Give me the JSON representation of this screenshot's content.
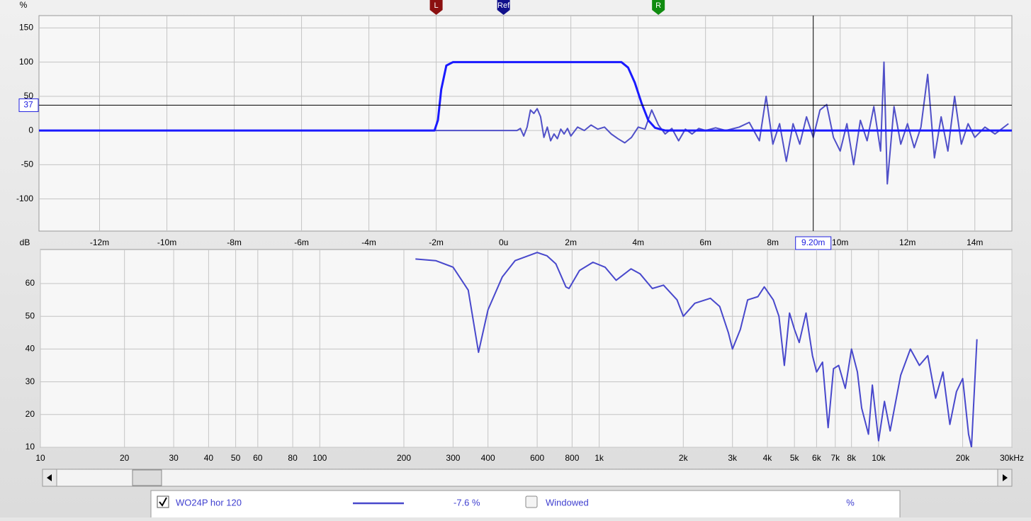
{
  "chart_data": [
    {
      "type": "line",
      "y_label": "%",
      "xlim": [
        -13.8,
        15.1
      ],
      "ylim": [
        -147,
        168
      ],
      "xticks": [
        {
          "value": -12,
          "label": "-12m"
        },
        {
          "value": -10,
          "label": "-10m"
        },
        {
          "value": -8,
          "label": "-8m"
        },
        {
          "value": -6,
          "label": "-6m"
        },
        {
          "value": -4,
          "label": "-4m"
        },
        {
          "value": -2,
          "label": "-2m"
        },
        {
          "value": 0,
          "label": "0u"
        },
        {
          "value": 2,
          "label": "2m"
        },
        {
          "value": 4,
          "label": "4m"
        },
        {
          "value": 6,
          "label": "6m"
        },
        {
          "value": 8,
          "label": "8m"
        },
        {
          "value": 10,
          "label": "10m"
        },
        {
          "value": 12,
          "label": "12m"
        },
        {
          "value": 14,
          "label": "14m"
        }
      ],
      "yticks": [
        150,
        100,
        50,
        0,
        -50,
        -100
      ],
      "grid": true,
      "series": [
        {
          "color": "#5050c8",
          "width": 2,
          "x": [
            -13.8,
            0.4,
            0.5,
            0.6,
            0.7,
            0.8,
            0.9,
            1.0,
            1.1,
            1.2,
            1.3,
            1.4,
            1.5,
            1.6,
            1.7,
            1.8,
            1.9,
            2.0,
            2.2,
            2.4,
            2.6,
            2.8,
            3.0,
            3.2,
            3.4,
            3.6,
            3.8,
            4.0,
            4.2,
            4.4,
            4.6,
            4.8,
            5.0,
            5.2,
            5.4,
            5.6,
            5.8,
            6.0,
            6.3,
            6.6,
            7.0,
            7.3,
            7.6,
            7.8,
            8.0,
            8.2,
            8.4,
            8.6,
            8.8,
            9.0,
            9.2,
            9.4,
            9.6,
            9.8,
            10.0,
            10.2,
            10.4,
            10.6,
            10.8,
            11.0,
            11.2,
            11.3,
            11.4,
            11.6,
            11.8,
            12.0,
            12.2,
            12.4,
            12.6,
            12.8,
            13.0,
            13.2,
            13.4,
            13.6,
            13.8,
            14.0,
            14.3,
            14.6,
            15.0
          ],
          "values": [
            0,
            0,
            3,
            -8,
            5,
            30,
            25,
            32,
            20,
            -10,
            5,
            -15,
            -5,
            -12,
            2,
            -5,
            3,
            -8,
            5,
            0,
            8,
            2,
            5,
            -5,
            -12,
            -18,
            -10,
            5,
            2,
            30,
            8,
            -5,
            3,
            -15,
            2,
            -5,
            3,
            0,
            4,
            0,
            5,
            12,
            -15,
            50,
            -20,
            10,
            -45,
            10,
            -20,
            20,
            -10,
            30,
            38,
            -10,
            -30,
            10,
            -50,
            15,
            -15,
            35,
            -30,
            100,
            -78,
            35,
            -20,
            10,
            -25,
            5,
            82,
            -40,
            20,
            -30,
            50,
            -20,
            10,
            -10,
            5,
            -5,
            10
          ]
        },
        {
          "color": "#1a1aff",
          "width": 3,
          "x": [
            -13.8,
            -2.05,
            -1.95,
            -1.85,
            -1.7,
            -1.5,
            3.5,
            3.7,
            3.9,
            4.1,
            4.3,
            4.5,
            4.8,
            15.1
          ],
          "values": [
            0,
            0,
            15,
            60,
            95,
            100,
            100,
            92,
            70,
            40,
            15,
            4,
            0,
            0
          ]
        }
      ],
      "cursor": {
        "x": {
          "value": 9.2,
          "label": "9.20m"
        },
        "y": 37
      },
      "markers": [
        {
          "label": "L",
          "x": -2,
          "color": "#8b1010"
        },
        {
          "label": "Ref",
          "x": 0,
          "color": "#10108b"
        },
        {
          "label": "R",
          "x": 4.6,
          "color": "#108b10"
        }
      ]
    },
    {
      "type": "line",
      "y_label": "dB",
      "xscale": "log",
      "xlim": [
        10,
        30000
      ],
      "ylim": [
        10,
        70.4
      ],
      "xticks": [
        10,
        20,
        30,
        40,
        50,
        60,
        80,
        100,
        200,
        300,
        400,
        600,
        800,
        {
          "value": 1000,
          "label": "1k"
        },
        {
          "value": 2000,
          "label": "2k"
        },
        {
          "value": 3000,
          "label": "3k"
        },
        {
          "value": 4000,
          "label": "4k"
        },
        {
          "value": 5000,
          "label": "5k"
        },
        {
          "value": 6000,
          "label": "6k"
        },
        {
          "value": 7000,
          "label": "7k"
        },
        {
          "value": 8000,
          "label": "8k"
        },
        {
          "value": 10000,
          "label": "10k"
        },
        {
          "value": 20000,
          "label": "20k"
        },
        {
          "value": 30000,
          "label": "30kHz"
        }
      ],
      "yticks": [
        10,
        20,
        30,
        40,
        50,
        60
      ],
      "grid": true,
      "series": [
        {
          "color": "#4848cc",
          "width": 2,
          "x": [
            220,
            260,
            300,
            340,
            370,
            400,
            450,
            500,
            600,
            650,
            700,
            760,
            780,
            850,
            950,
            1050,
            1150,
            1300,
            1400,
            1550,
            1700,
            1900,
            2000,
            2200,
            2500,
            2700,
            2900,
            3000,
            3200,
            3400,
            3700,
            3900,
            4200,
            4400,
            4600,
            4800,
            5000,
            5200,
            5500,
            5800,
            6000,
            6300,
            6600,
            6900,
            7200,
            7600,
            8000,
            8400,
            8700,
            9200,
            9500,
            10000,
            10500,
            11000,
            12000,
            13000,
            14000,
            15000,
            16000,
            17000,
            18000,
            19000,
            20000,
            21000,
            21500,
            22500
          ],
          "values": [
            67.5,
            67,
            65,
            58,
            39,
            52,
            62,
            67,
            69.5,
            68.5,
            66,
            59,
            58.5,
            64,
            66.5,
            65,
            61,
            64.5,
            63,
            58.5,
            59.5,
            55,
            50,
            54,
            55.5,
            53,
            45,
            40,
            46,
            55,
            56,
            59,
            55,
            50,
            35,
            51,
            46,
            42,
            51,
            38,
            33,
            36,
            16,
            34,
            35,
            28,
            40,
            33,
            22,
            14,
            29,
            12,
            24,
            15,
            32,
            40,
            35,
            38,
            25,
            33,
            17,
            27,
            31,
            14,
            10,
            43
          ]
        }
      ]
    }
  ],
  "legend": {
    "checked": true,
    "name": "WO24P hor 120",
    "value": "-7.6 %",
    "windowed_checked": false,
    "windowed": "Windowed",
    "unit": "%"
  }
}
